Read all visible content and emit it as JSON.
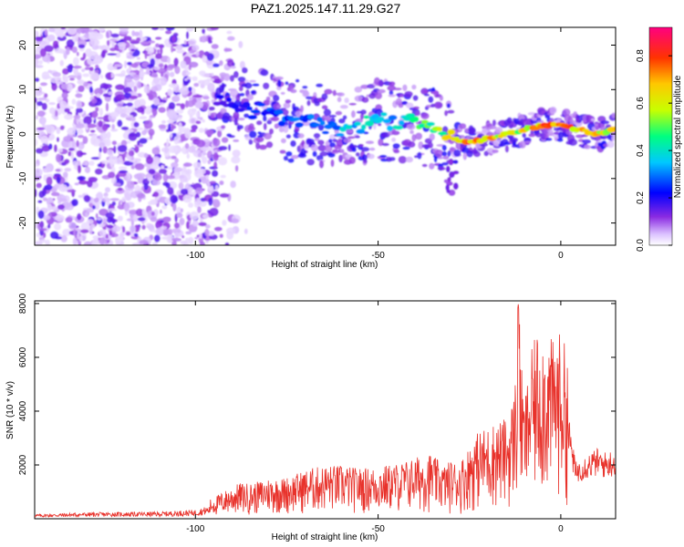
{
  "title": "PAZ1.2025.147.11.29.G27",
  "colors": {
    "background": "#ffffff",
    "snr_line": "#e8322b",
    "colorscale": [
      "#ffffff",
      "#dcc3ff",
      "#8a2be2",
      "#0000ff",
      "#00c8ff",
      "#00ff80",
      "#c8ff00",
      "#ffc800",
      "#ff3300",
      "#ff0080"
    ]
  },
  "chart_data": [
    {
      "type": "heatmap",
      "title": "PAZ1.2025.147.11.29.G27",
      "xlabel": "Height of straight line (km)",
      "ylabel": "Frequency (Hz)",
      "xlim": [
        -144,
        15
      ],
      "ylim": [
        -25,
        24
      ],
      "x_ticks": [
        {
          "value": -100,
          "label": "-100"
        },
        {
          "value": -50,
          "label": "-50"
        },
        {
          "value": 0,
          "label": "0"
        }
      ],
      "y_ticks": [
        {
          "value": 20,
          "label": "20"
        },
        {
          "value": 10,
          "label": "10"
        },
        {
          "value": 0,
          "label": "0"
        },
        {
          "value": -10,
          "label": "-10"
        },
        {
          "value": -20,
          "label": "-20"
        }
      ],
      "colorbar": {
        "label": "Normalized spectral amplitude",
        "range": [
          0,
          0.92
        ],
        "ticks": [
          {
            "value": 0.0,
            "label": "0.0"
          },
          {
            "value": 0.2,
            "label": "0.2"
          },
          {
            "value": 0.4,
            "label": "0.4"
          },
          {
            "value": 0.6,
            "label": "0.6"
          },
          {
            "value": 0.8,
            "label": "0.8"
          }
        ]
      },
      "ridge": {
        "x": [
          -94,
          -90,
          -85,
          -80,
          -75,
          -70,
          -65,
          -60,
          -55,
          -50,
          -45,
          -40,
          -35,
          -30,
          -25,
          -20,
          -15,
          -10,
          -5,
          0,
          5,
          10,
          15
        ],
        "frequency": [
          8,
          7,
          5,
          6,
          3,
          3,
          2,
          0,
          2,
          4,
          2,
          3,
          1,
          -1,
          -2,
          -1,
          0,
          1,
          2,
          2,
          1,
          0,
          1
        ],
        "amplitude": [
          0.2,
          0.22,
          0.25,
          0.28,
          0.3,
          0.32,
          0.34,
          0.4,
          0.45,
          0.4,
          0.42,
          0.5,
          0.55,
          0.7,
          0.88,
          0.8,
          0.65,
          0.7,
          0.82,
          0.85,
          0.8,
          0.75,
          0.7
        ]
      }
    },
    {
      "type": "line",
      "xlabel": "Height of straight line (km)",
      "ylabel": "SNR (10 * v/v)",
      "xlim": [
        -144,
        15
      ],
      "ylim": [
        0,
        8100
      ],
      "x_ticks": [
        {
          "value": -100,
          "label": "-100"
        },
        {
          "value": -50,
          "label": "-50"
        },
        {
          "value": 0,
          "label": "0"
        }
      ],
      "y_ticks": [
        {
          "value": 2000,
          "label": "2000"
        },
        {
          "value": 4000,
          "label": "4000"
        },
        {
          "value": 6000,
          "label": "6000"
        },
        {
          "value": 8000,
          "label": "8000"
        }
      ],
      "series": [
        {
          "x": [
            -144,
            -130,
            -120,
            -110,
            -100,
            -96,
            -92,
            -88,
            -84,
            -80,
            -76,
            -72,
            -68,
            -64,
            -60,
            -56,
            -52,
            -48,
            -44,
            -40,
            -36,
            -32,
            -30,
            -28,
            -26,
            -24,
            -22,
            -20,
            -18,
            -16,
            -14,
            -12,
            -11.5,
            -11,
            -10,
            -8,
            -6,
            -4,
            -2,
            0,
            2,
            3,
            4,
            6,
            8,
            10,
            12,
            15
          ],
          "y": [
            130,
            180,
            190,
            200,
            260,
            380,
            550,
            700,
            700,
            800,
            800,
            900,
            1000,
            1050,
            1050,
            1000,
            1000,
            1050,
            1100,
            1200,
            1300,
            1050,
            1150,
            1100,
            1300,
            1600,
            1750,
            1800,
            1900,
            1950,
            2000,
            3000,
            8000,
            3200,
            2300,
            3300,
            3800,
            3600,
            3500,
            3700,
            3200,
            2500,
            1700,
            1900,
            2000,
            2100,
            2000,
            2100
          ]
        }
      ]
    }
  ]
}
